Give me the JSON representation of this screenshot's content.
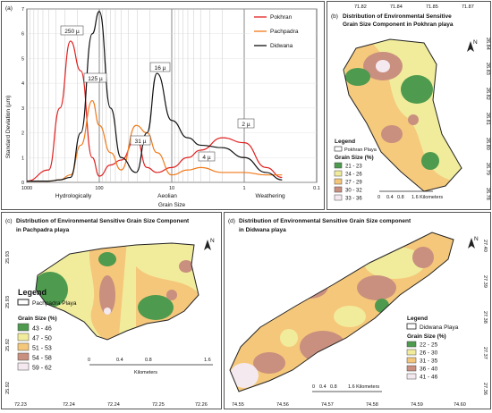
{
  "panel_a": {
    "tag": "(a)",
    "ylabel": "Standard Deviation (µm)",
    "xlabel": "Grain Size",
    "yticks": [
      "0",
      "1",
      "2",
      "3",
      "4",
      "5",
      "6",
      "7"
    ],
    "xticks": [
      "1000",
      "100",
      "10",
      "1",
      "0.1"
    ],
    "zones": [
      "Hydrologically",
      "Aeolian",
      "Weathering"
    ],
    "peak_labels": [
      "250 µ",
      "125 µ",
      "31 µ",
      "16 µ",
      "4 µ",
      "2 µ"
    ],
    "legend": [
      {
        "name": "Pokhran",
        "color": "#e02020"
      },
      {
        "name": "Pachpadra",
        "color": "#f07a1a"
      },
      {
        "name": "Didwana",
        "color": "#111111"
      }
    ]
  },
  "chart_data": {
    "type": "line",
    "ylabel": "Standard Deviation (µm)",
    "xlabel": "Grain Size",
    "x_scale": "log-reversed",
    "xlim": [
      1000,
      0.1
    ],
    "ylim": [
      0,
      7
    ],
    "x": [
      1000,
      500,
      350,
      250,
      180,
      125,
      100,
      70,
      50,
      31,
      22,
      16,
      10,
      6,
      4,
      2,
      1,
      0.5,
      0.3
    ],
    "series": [
      {
        "name": "Pokhran",
        "values": [
          0.05,
          0.5,
          3.0,
          5.7,
          4.5,
          1.0,
          0.25,
          0.7,
          0.9,
          1.8,
          0.6,
          0.4,
          0.6,
          1.0,
          1.3,
          1.8,
          1.6,
          0.6,
          0.2
        ]
      },
      {
        "name": "Pachpadra",
        "values": [
          0.05,
          0.05,
          0.1,
          0.3,
          1.5,
          3.3,
          2.3,
          1.2,
          0.5,
          2.3,
          2.0,
          1.2,
          0.3,
          0.5,
          0.6,
          0.4,
          0.4,
          0.3,
          0.3
        ]
      },
      {
        "name": "Didwana",
        "values": [
          0.05,
          0.05,
          0.1,
          0.2,
          2.0,
          6.0,
          6.9,
          3.0,
          1.0,
          0.4,
          2.0,
          4.4,
          2.5,
          1.8,
          1.5,
          1.4,
          1.0,
          0.4,
          0.1
        ]
      }
    ]
  },
  "panel_b": {
    "tag": "(b)",
    "title1": "Distribution of Environmental Sensitive",
    "title2": "Grain Size Component  in Pokhran playa",
    "top_ticks": [
      "71.82",
      "71.84",
      "71.85",
      "71.87"
    ],
    "right_ticks": [
      "26.84",
      "26.83",
      "26.82",
      "26.81",
      "26.80",
      "26.79",
      "26.78"
    ],
    "legend_title": "Legend",
    "outline_label": "Pokhran Playa",
    "size_title": "Grain Size (%)",
    "classes": [
      {
        "label": "21 - 23",
        "color": "#4e9a4e"
      },
      {
        "label": "24 - 26",
        "color": "#f1ec9c"
      },
      {
        "label": "27 - 29",
        "color": "#f5c77a"
      },
      {
        "label": "30 - 32",
        "color": "#c98f7f"
      },
      {
        "label": "33 - 36",
        "color": "#f5e9f0"
      }
    ],
    "scale": [
      "0",
      "0.4",
      "0.8",
      "1.6 Kilometers"
    ]
  },
  "panel_c": {
    "tag": "(c)",
    "title1": "Distribution of Environmental Sensitive Grain Size Component",
    "title2": "in Pachpadra playa",
    "left_ticks": [
      "25.93",
      "25.93",
      "25.92",
      "25.92"
    ],
    "bottom_ticks": [
      "72.23",
      "72.24",
      "72.24",
      "72.25",
      "72.26"
    ],
    "legend_title": "Legend",
    "outline_label": "Pachpadra Playa",
    "size_title": "Grain Size (%)",
    "classes": [
      {
        "label": "43 - 46",
        "color": "#4e9a4e"
      },
      {
        "label": "47 - 50",
        "color": "#f1ec9c"
      },
      {
        "label": "51 - 53",
        "color": "#f5c77a"
      },
      {
        "label": "54 - 58",
        "color": "#c98f7f"
      },
      {
        "label": "59 - 62",
        "color": "#f5e9f0"
      }
    ],
    "scale": [
      "0",
      "0.4",
      "0.8",
      "1.6"
    ],
    "scale_unit": "Kilometers"
  },
  "panel_d": {
    "tag": "(d)",
    "title1": "Distribution of Environmental Sensitive Grain Size component",
    "title2": "in Didwana playa",
    "right_ticks": [
      "27.40",
      "27.39",
      "27.38",
      "27.37",
      "27.36"
    ],
    "bottom_ticks": [
      "74.55",
      "74.56",
      "74.57",
      "74.58",
      "74.59",
      "74.60"
    ],
    "legend_title": "Legend",
    "outline_label": "Didwana Playa",
    "size_title": "Grain Size (%)",
    "classes": [
      {
        "label": "22 - 25",
        "color": "#4e9a4e"
      },
      {
        "label": "26 - 30",
        "color": "#f1ec9c"
      },
      {
        "label": "31 - 35",
        "color": "#f5c77a"
      },
      {
        "label": "36 - 40",
        "color": "#c98f7f"
      },
      {
        "label": "41 - 46",
        "color": "#f5e9f0"
      }
    ],
    "scale": [
      "0",
      "0.4",
      "0.8",
      "1.6 Kilometers"
    ]
  },
  "north": "N"
}
